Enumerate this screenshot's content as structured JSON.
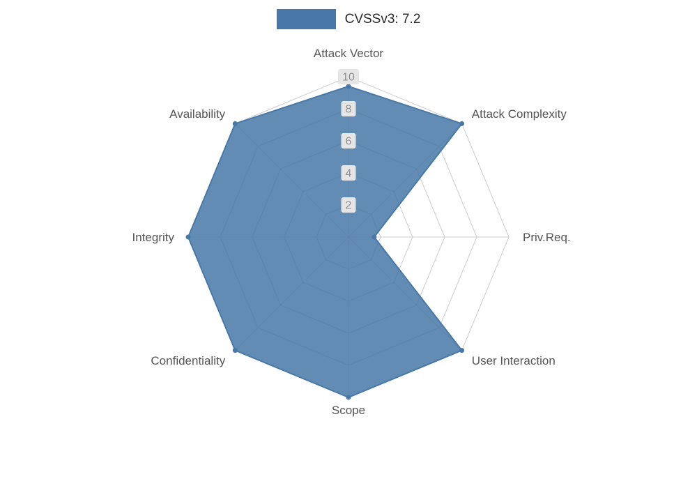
{
  "legend": {
    "label": "CVSSv3: 7.2"
  },
  "chart_data": {
    "type": "radar",
    "title": "CVSSv3: 7.2",
    "axes": [
      "Attack Vector",
      "Attack Complexity",
      "Priv.Req.",
      "User Interaction",
      "Scope",
      "Confidentiality",
      "Integrity",
      "Availability"
    ],
    "series": [
      {
        "name": "CVSSv3: 7.2",
        "values": [
          9.4,
          10,
          1.6,
          10,
          10,
          10,
          10,
          10
        ]
      }
    ],
    "max": 10,
    "ticks": [
      2,
      4,
      6,
      8,
      10
    ],
    "grid": "polygon-web",
    "legend_position": "top",
    "colors": {
      "series_fill": "#4878a8",
      "grid_line": "#cccccc",
      "tick_text": "#8f8f8f",
      "tick_bg": "#e6e6e6",
      "axis_label": "#555555"
    }
  }
}
